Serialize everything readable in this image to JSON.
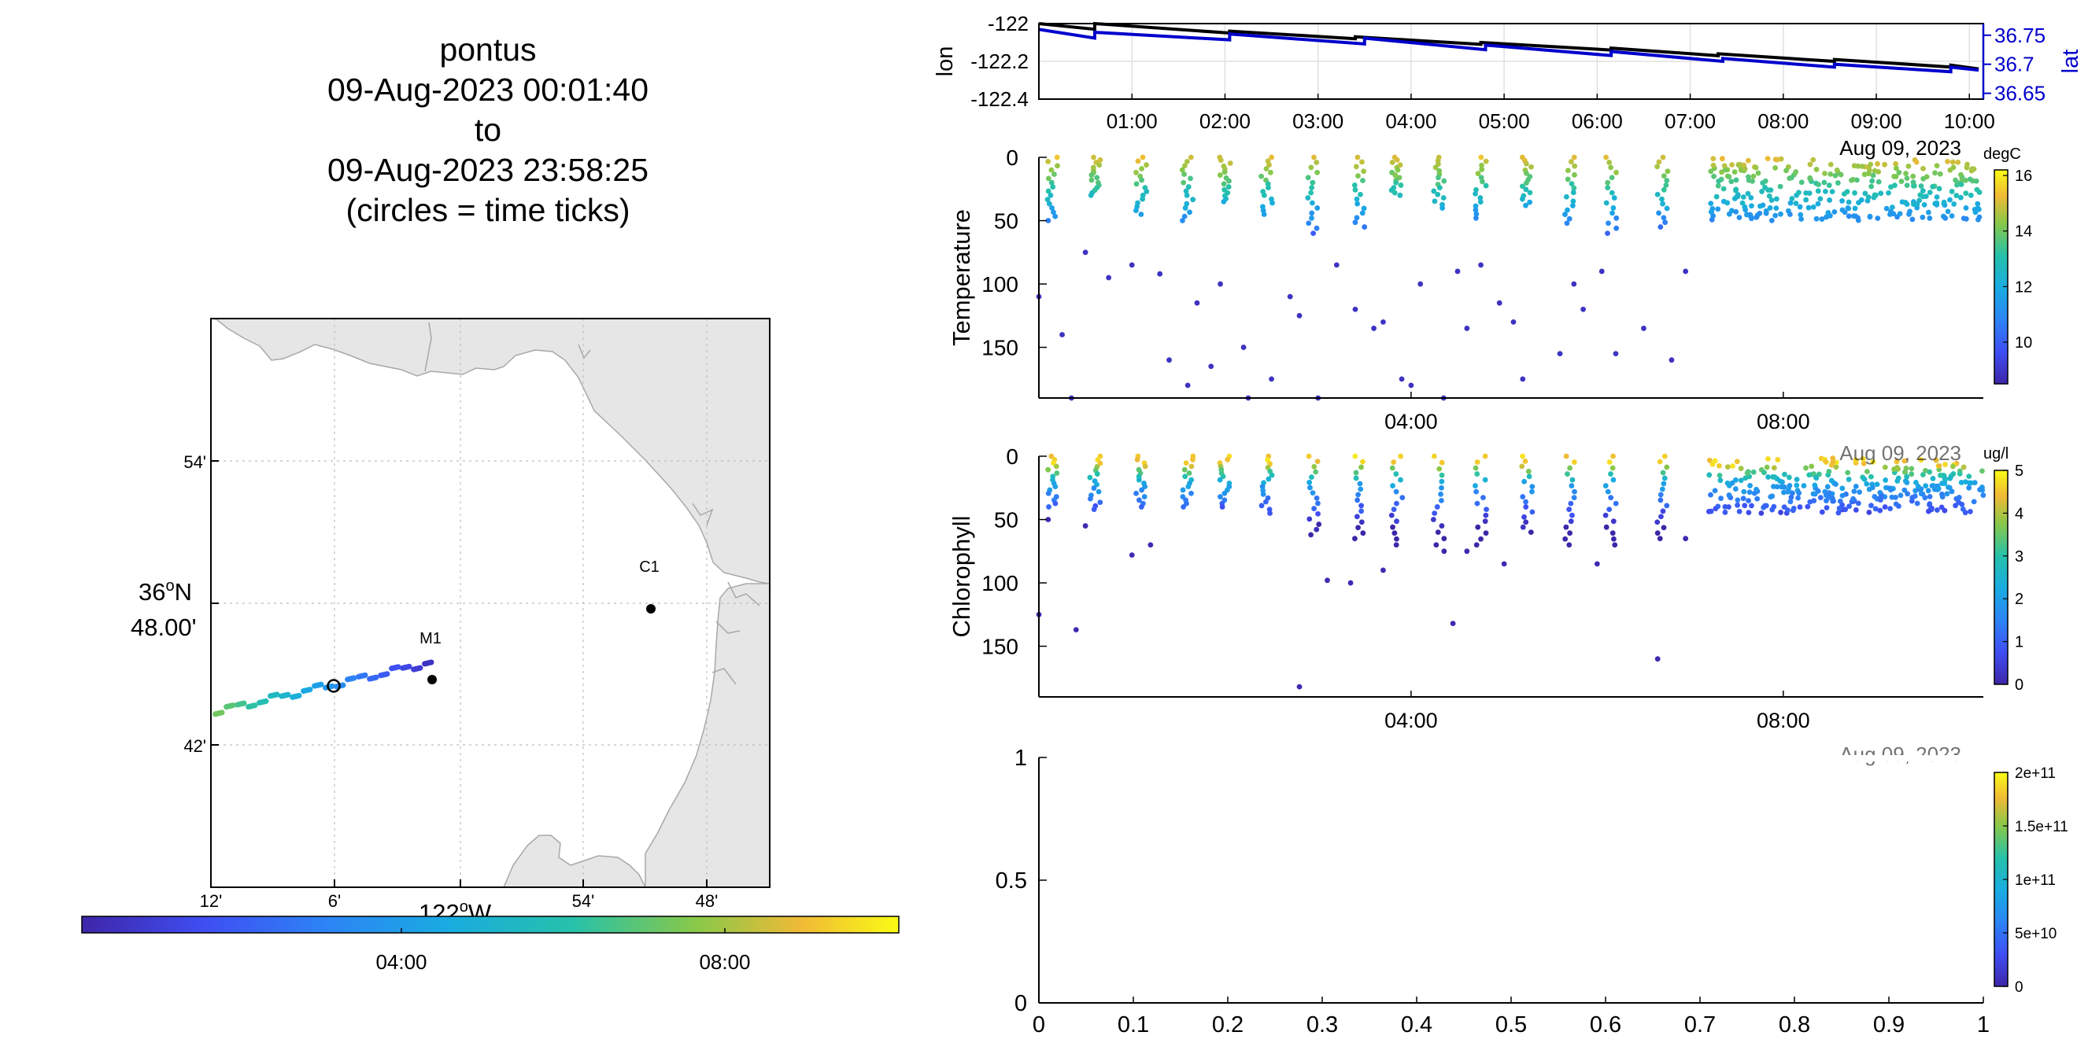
{
  "title": {
    "lines": [
      "pontus",
      "09-Aug-2023 00:01:40",
      "to",
      "09-Aug-2023 23:58:25",
      "(circles = time ticks)"
    ]
  },
  "map": {
    "lat_ticks": [
      "54'",
      "42'"
    ],
    "lat_main_deg": "36",
    "lat_main_hem": "N",
    "lat_main_min": "48.00'",
    "lon_ticks": [
      "12'",
      "6'",
      "54'",
      "48'"
    ],
    "lon_main_deg": "122",
    "lon_main_hem": "W",
    "stations": [
      {
        "name": "M1"
      },
      {
        "name": "C1"
      }
    ],
    "land_color": "#e6e6e6",
    "coast_color": "#a8a8a8"
  },
  "time_colorbar": {
    "ticks": [
      "04:00",
      "08:00"
    ]
  },
  "chart_data": [
    {
      "type": "line",
      "panel": "lon-lat",
      "ylabel": "lon",
      "ylabel_right": "lat",
      "x_ticks": [
        "01:00",
        "02:00",
        "03:00",
        "04:00",
        "05:00",
        "06:00",
        "07:00",
        "08:00",
        "09:00",
        "10:00"
      ],
      "y_ticks": [
        "-122",
        "-122.2",
        "-122.4"
      ],
      "y_ticks_right": [
        "36.75",
        "36.7",
        "36.65"
      ],
      "ylim": [
        -122.4,
        -122.0
      ],
      "ylim_right": [
        36.64,
        36.77
      ],
      "grid": true,
      "series": [
        {
          "name": "lon",
          "color": "#000000",
          "x": [
            0.0,
            0.6,
            0.6,
            2.05,
            2.05,
            3.4,
            3.4,
            4.75,
            4.75,
            6.15,
            6.15,
            7.3,
            7.3,
            8.55,
            8.55,
            9.8,
            9.8,
            10.1
          ],
          "y": [
            -122.0,
            -122.03,
            -122.0,
            -122.05,
            -122.04,
            -122.08,
            -122.07,
            -122.11,
            -122.1,
            -122.14,
            -122.13,
            -122.17,
            -122.16,
            -122.2,
            -122.19,
            -122.23,
            -122.22,
            -122.24
          ]
        },
        {
          "name": "lat",
          "color": "#0000cc",
          "x": [
            0.0,
            0.6,
            0.6,
            2.05,
            2.05,
            3.5,
            3.5,
            4.8,
            4.8,
            6.15,
            6.15,
            7.35,
            7.35,
            8.55,
            8.55,
            9.8,
            9.8,
            10.1
          ],
          "y": [
            36.76,
            36.745,
            36.755,
            36.742,
            36.752,
            36.735,
            36.745,
            36.725,
            36.733,
            36.715,
            36.722,
            36.705,
            36.71,
            36.695,
            36.7,
            36.687,
            36.695,
            36.69
          ]
        }
      ]
    },
    {
      "type": "scatter",
      "panel": "temperature",
      "ylabel": "Temperature",
      "y_ticks": [
        "0",
        "50",
        "100",
        "150"
      ],
      "ylim": [
        0,
        190
      ],
      "x_ticks": [
        "04:00",
        "08:00"
      ],
      "date_label": "Aug 09, 2023",
      "colorbar_unit": "degC",
      "colorbar_ticks": [
        "16",
        "14",
        "12",
        "10"
      ],
      "clim": [
        8.5,
        16.2
      ],
      "profiles_x": [
        0.15,
        0.6,
        1.1,
        1.6,
        2.0,
        2.45,
        2.95,
        3.45,
        3.85,
        4.3,
        4.75,
        5.25,
        5.7,
        6.15,
        6.7
      ],
      "profiles_depth": [
        50,
        30,
        45,
        50,
        35,
        45,
        60,
        55,
        30,
        40,
        48,
        38,
        52,
        60,
        55
      ],
      "deep_points": [
        {
          "x": 0.0,
          "y": 110
        },
        {
          "x": 0.25,
          "y": 140
        },
        {
          "x": 0.35,
          "y": 190
        },
        {
          "x": 0.5,
          "y": 75
        },
        {
          "x": 0.75,
          "y": 95
        },
        {
          "x": 1.0,
          "y": 85
        },
        {
          "x": 1.3,
          "y": 92
        },
        {
          "x": 1.4,
          "y": 160
        },
        {
          "x": 1.6,
          "y": 180
        },
        {
          "x": 1.7,
          "y": 115
        },
        {
          "x": 1.85,
          "y": 165
        },
        {
          "x": 1.95,
          "y": 100
        },
        {
          "x": 2.2,
          "y": 150
        },
        {
          "x": 2.25,
          "y": 190
        },
        {
          "x": 2.5,
          "y": 175
        },
        {
          "x": 2.7,
          "y": 110
        },
        {
          "x": 2.8,
          "y": 125
        },
        {
          "x": 3.0,
          "y": 190
        },
        {
          "x": 3.2,
          "y": 85
        },
        {
          "x": 3.4,
          "y": 120
        },
        {
          "x": 3.6,
          "y": 135
        },
        {
          "x": 3.7,
          "y": 130
        },
        {
          "x": 3.9,
          "y": 175
        },
        {
          "x": 4.0,
          "y": 180
        },
        {
          "x": 4.1,
          "y": 100
        },
        {
          "x": 4.35,
          "y": 190
        },
        {
          "x": 4.5,
          "y": 90
        },
        {
          "x": 4.6,
          "y": 135
        },
        {
          "x": 4.75,
          "y": 85
        },
        {
          "x": 4.95,
          "y": 115
        },
        {
          "x": 5.1,
          "y": 130
        },
        {
          "x": 5.2,
          "y": 175
        },
        {
          "x": 5.6,
          "y": 155
        },
        {
          "x": 5.75,
          "y": 100
        },
        {
          "x": 5.85,
          "y": 120
        },
        {
          "x": 6.05,
          "y": 90
        },
        {
          "x": 6.2,
          "y": 155
        },
        {
          "x": 6.5,
          "y": 135
        },
        {
          "x": 6.8,
          "y": 160
        },
        {
          "x": 6.95,
          "y": 90
        }
      ],
      "dense_region": {
        "x_start": 7.2,
        "x_end": 10.15,
        "depth_min": 0,
        "depth_max": 50
      }
    },
    {
      "type": "scatter",
      "panel": "chlorophyll",
      "ylabel": "Chlorophyll",
      "y_ticks": [
        "0",
        "50",
        "100",
        "150"
      ],
      "ylim": [
        0,
        190
      ],
      "x_ticks": [
        "04:00",
        "08:00"
      ],
      "date_label": "Aug 09, 2023",
      "colorbar_unit": "ug/l",
      "colorbar_ticks": [
        "5",
        "4",
        "3",
        "2",
        "1",
        "0"
      ],
      "clim": [
        0,
        5
      ],
      "profiles_x": [
        0.15,
        0.6,
        1.1,
        1.6,
        2.0,
        2.45,
        2.95,
        3.45,
        3.85,
        4.3,
        4.75,
        5.25,
        5.7,
        6.15,
        6.7
      ],
      "profiles_depth": [
        40,
        42,
        40,
        40,
        40,
        45,
        62,
        65,
        70,
        75,
        70,
        60,
        70,
        70,
        65
      ],
      "deep_points": [
        {
          "x": 0.0,
          "y": 125
        },
        {
          "x": 0.1,
          "y": 50
        },
        {
          "x": 0.4,
          "y": 137
        },
        {
          "x": 0.5,
          "y": 55
        },
        {
          "x": 1.0,
          "y": 78
        },
        {
          "x": 1.2,
          "y": 70
        },
        {
          "x": 2.8,
          "y": 182
        },
        {
          "x": 3.1,
          "y": 98
        },
        {
          "x": 3.35,
          "y": 100
        },
        {
          "x": 3.7,
          "y": 90
        },
        {
          "x": 4.45,
          "y": 132
        },
        {
          "x": 4.6,
          "y": 75
        },
        {
          "x": 5.0,
          "y": 85
        },
        {
          "x": 6.0,
          "y": 85
        },
        {
          "x": 6.65,
          "y": 160
        },
        {
          "x": 6.95,
          "y": 65
        }
      ],
      "dense_region": {
        "x_start": 7.2,
        "x_end": 10.15,
        "depth_min": 0,
        "depth_max": 45
      }
    },
    {
      "type": "scatter",
      "panel": "empty",
      "x_ticks": [
        "0",
        "0.1",
        "0.2",
        "0.3",
        "0.4",
        "0.5",
        "0.6",
        "0.7",
        "0.8",
        "0.9",
        "1"
      ],
      "y_ticks": [
        "1",
        "0.5",
        "0"
      ],
      "xlim": [
        0,
        1
      ],
      "ylim": [
        0,
        1
      ],
      "colorbar_ticks": [
        "2e+11",
        "1.5e+11",
        "1e+11",
        "5e+10",
        "0"
      ],
      "clim": [
        0,
        200000000000.0
      ]
    }
  ]
}
